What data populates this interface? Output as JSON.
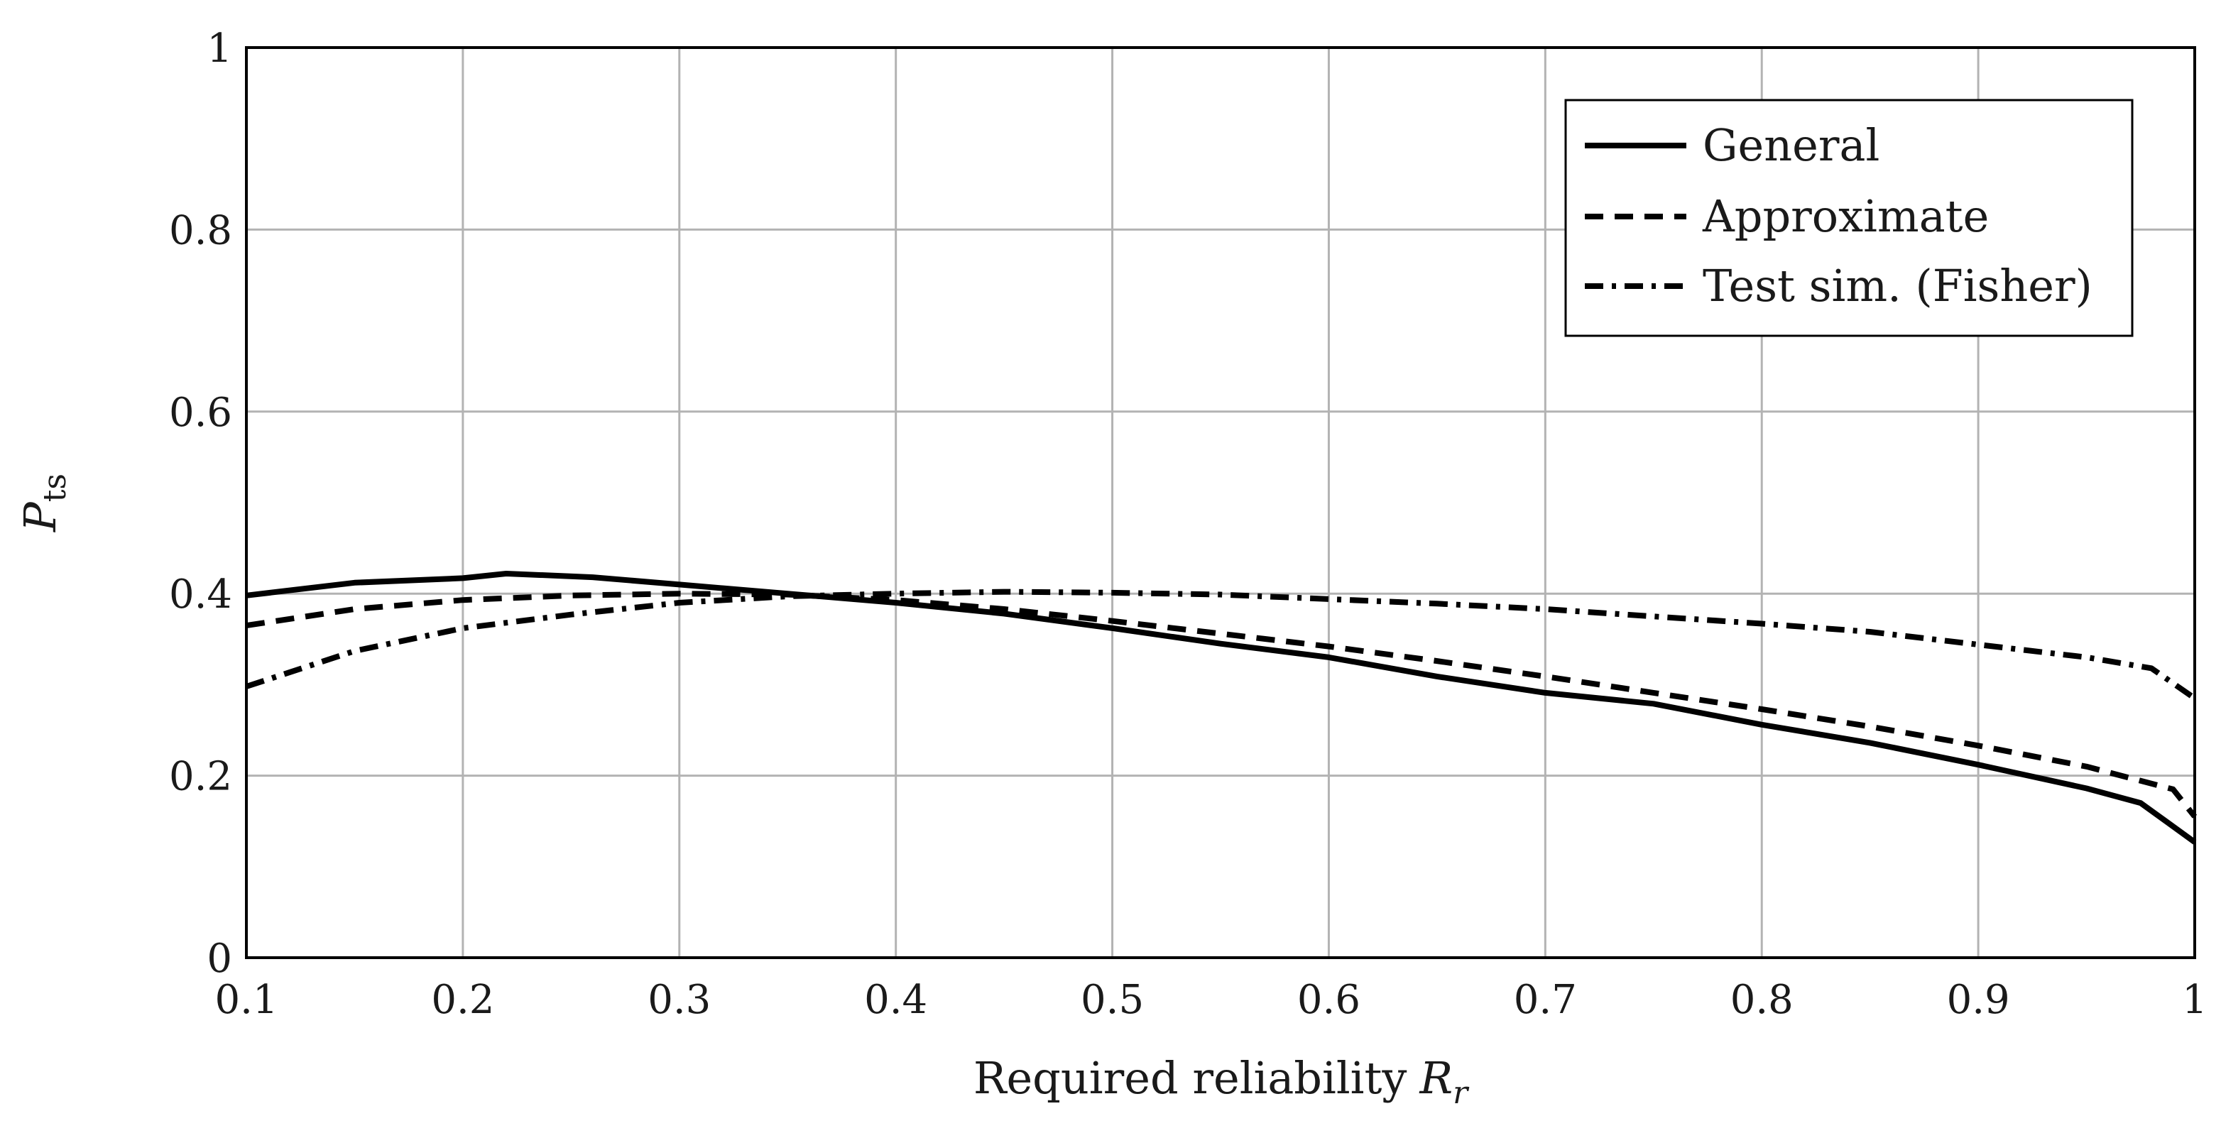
{
  "chart_data": {
    "type": "line",
    "title": "",
    "xlabel": "Required reliability",
    "xlabel_symbol": "R",
    "xlabel_subscript": "r",
    "ylabel_symbol": "P",
    "ylabel_subscript": "ts",
    "xlim": [
      0.1,
      1
    ],
    "ylim": [
      0,
      1
    ],
    "grid": true,
    "legend_position": "top-right",
    "x_ticks": [
      0.1,
      0.2,
      0.3,
      0.4,
      0.5,
      0.6,
      0.7,
      0.8,
      0.9,
      1
    ],
    "x_tick_labels": [
      "0.1",
      "0.2",
      "0.3",
      "0.4",
      "0.5",
      "0.6",
      "0.7",
      "0.8",
      "0.9",
      "1"
    ],
    "y_ticks": [
      0,
      0.2,
      0.4,
      0.6,
      0.8,
      1
    ],
    "y_tick_labels": [
      "0",
      "0.2",
      "0.4",
      "0.6",
      "0.8",
      "1"
    ],
    "series": [
      {
        "name": "General",
        "style": "solid",
        "x": [
          0.1,
          0.15,
          0.2,
          0.22,
          0.26,
          0.3,
          0.35,
          0.4,
          0.45,
          0.5,
          0.55,
          0.6,
          0.65,
          0.7,
          0.75,
          0.8,
          0.85,
          0.9,
          0.95,
          0.975,
          1.0
        ],
        "y": [
          0.398,
          0.412,
          0.417,
          0.422,
          0.418,
          0.41,
          0.4,
          0.39,
          0.378,
          0.362,
          0.345,
          0.33,
          0.309,
          0.291,
          0.279,
          0.256,
          0.236,
          0.212,
          0.186,
          0.17,
          0.127
        ]
      },
      {
        "name": "Approximate",
        "style": "dashed",
        "x": [
          0.1,
          0.15,
          0.2,
          0.25,
          0.3,
          0.35,
          0.4,
          0.45,
          0.5,
          0.55,
          0.6,
          0.65,
          0.7,
          0.75,
          0.8,
          0.85,
          0.9,
          0.95,
          0.99,
          1.0
        ],
        "y": [
          0.365,
          0.383,
          0.393,
          0.398,
          0.4,
          0.399,
          0.393,
          0.383,
          0.37,
          0.356,
          0.342,
          0.326,
          0.309,
          0.291,
          0.273,
          0.254,
          0.233,
          0.21,
          0.185,
          0.155
        ]
      },
      {
        "name": "Test sim. (Fisher)",
        "style": "dashdot",
        "x": [
          0.1,
          0.15,
          0.2,
          0.25,
          0.3,
          0.35,
          0.4,
          0.45,
          0.5,
          0.55,
          0.6,
          0.65,
          0.7,
          0.75,
          0.8,
          0.85,
          0.9,
          0.95,
          0.98,
          1.0
        ],
        "y": [
          0.298,
          0.337,
          0.362,
          0.377,
          0.39,
          0.397,
          0.4,
          0.402,
          0.401,
          0.399,
          0.394,
          0.389,
          0.383,
          0.375,
          0.367,
          0.358,
          0.344,
          0.33,
          0.318,
          0.285
        ]
      }
    ]
  }
}
